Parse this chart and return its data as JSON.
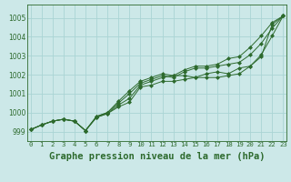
{
  "bg_color": "#cce8e8",
  "grid_color": "#aad4d4",
  "line_color": "#2d6a2d",
  "xlabel": "Graphe pression niveau de la mer (hPa)",
  "xlabel_fontsize": 7.5,
  "ylabel_ticks": [
    999,
    1000,
    1001,
    1002,
    1003,
    1004,
    1005
  ],
  "xticks": [
    0,
    1,
    2,
    3,
    4,
    5,
    6,
    7,
    8,
    9,
    10,
    11,
    12,
    13,
    14,
    15,
    16,
    17,
    18,
    19,
    20,
    21,
    22,
    23
  ],
  "ylim": [
    998.5,
    1005.7
  ],
  "xlim": [
    -0.3,
    23.3
  ],
  "series": [
    [
      999.1,
      999.35,
      999.55,
      999.65,
      999.55,
      999.05,
      999.75,
      999.95,
      1000.3,
      1000.55,
      1001.35,
      1001.45,
      1001.65,
      1001.65,
      1001.75,
      1001.85,
      1001.85,
      1001.85,
      1001.95,
      1002.05,
      1002.45,
      1002.95,
      1004.65,
      1005.1
    ],
    [
      999.1,
      999.35,
      999.55,
      999.65,
      999.55,
      999.05,
      999.75,
      999.95,
      1000.4,
      1000.75,
      1001.45,
      1001.65,
      1001.85,
      1001.95,
      1001.95,
      1001.85,
      1002.05,
      1002.15,
      1002.05,
      1002.35,
      1002.45,
      1003.05,
      1004.05,
      1005.1
    ],
    [
      999.1,
      999.35,
      999.55,
      999.65,
      999.55,
      999.05,
      999.8,
      1000.0,
      1000.5,
      1001.0,
      1001.55,
      1001.75,
      1001.95,
      1001.85,
      1002.15,
      1002.35,
      1002.35,
      1002.45,
      1002.55,
      1002.65,
      1003.05,
      1003.65,
      1004.45,
      1005.1
    ],
    [
      999.1,
      999.35,
      999.55,
      999.65,
      999.55,
      999.05,
      999.8,
      1000.0,
      1000.6,
      1001.15,
      1001.65,
      1001.85,
      1002.05,
      1001.95,
      1002.25,
      1002.45,
      1002.45,
      1002.55,
      1002.85,
      1002.95,
      1003.45,
      1004.05,
      1004.75,
      1005.1
    ]
  ]
}
